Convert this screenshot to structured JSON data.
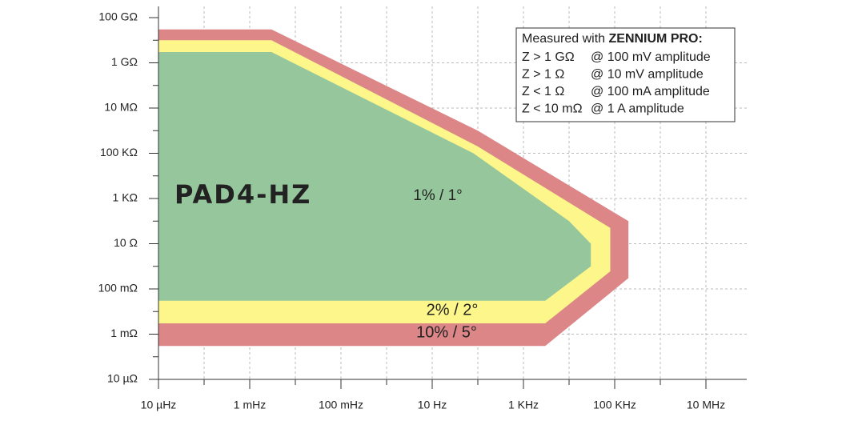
{
  "chart_data": {
    "type": "region",
    "title": "PAD4-HZ",
    "xscale": "log",
    "yscale": "log",
    "grid": true,
    "xlim": [
      1e-05,
      100000000.0
    ],
    "ylim": [
      1e-05,
      100000000000.0
    ],
    "xticks": [
      {
        "value": 1e-05,
        "label": "10 µHz"
      },
      {
        "value": 0.001,
        "label": "1 mHz"
      },
      {
        "value": 0.1,
        "label": "100 mHz"
      },
      {
        "value": 10,
        "label": "10 Hz"
      },
      {
        "value": 1000,
        "label": "1 KHz"
      },
      {
        "value": 100000,
        "label": "100 KHz"
      },
      {
        "value": 10000000,
        "label": "10 MHz"
      }
    ],
    "xminorticks": [
      0.0001,
      0.01,
      1,
      100,
      10000,
      1000000,
      100000000
    ],
    "yticks": [
      {
        "value": 100000000000.0,
        "label": "100 GΩ"
      },
      {
        "value": 1000000000.0,
        "label": "1 GΩ"
      },
      {
        "value": 10000000.0,
        "label": "10 MΩ"
      },
      {
        "value": 100000,
        "label": "100 KΩ"
      },
      {
        "value": 1000,
        "label": "1 KΩ"
      },
      {
        "value": 10,
        "label": "10 Ω"
      },
      {
        "value": 0.1,
        "label": "100 mΩ"
      },
      {
        "value": 0.001,
        "label": "1 mΩ"
      },
      {
        "value": 1e-05,
        "label": "10 µΩ"
      }
    ],
    "yminorticks": [
      10000000000.0,
      100000000.0,
      1000000,
      10000,
      100,
      1,
      0.01,
      0.0001
    ],
    "series": [
      {
        "name": "10% / 5°",
        "color": "#dc8687",
        "x": [
          1e-05,
          0.003,
          100,
          200000,
          200000,
          3000,
          1e-05
        ],
        "values": [
          30000000000.0,
          30000000000.0,
          1000000,
          100,
          0.3,
          0.0003,
          0.0003
        ]
      },
      {
        "name": "2% / 2°",
        "color": "#fcf68b",
        "x": [
          1e-05,
          0.003,
          100,
          80000,
          80000,
          3000,
          1e-05
        ],
        "values": [
          10000000000.0,
          10000000000.0,
          200000,
          50,
          0.6,
          0.003,
          0.003
        ]
      },
      {
        "name": "1% / 1°",
        "color": "#96c79c",
        "x": [
          1e-05,
          0.003,
          80,
          10000,
          30000,
          30000,
          3000,
          1e-05
        ],
        "values": [
          3000000000.0,
          3000000000.0,
          100000,
          100,
          10,
          1,
          0.03,
          0.03
        ]
      }
    ],
    "note": {
      "title": "Measured with ",
      "title_bold": "ZENNIUM PRO:",
      "lines": [
        [
          "Z > 1 GΩ",
          "@ 100 mV amplitude"
        ],
        [
          "Z > 1 Ω",
          "@ 10 mV amplitude"
        ],
        [
          "Z < 1 Ω",
          "@ 100 mA amplitude"
        ],
        [
          "Z < 10 mΩ",
          "@ 1 A amplitude"
        ]
      ]
    }
  }
}
